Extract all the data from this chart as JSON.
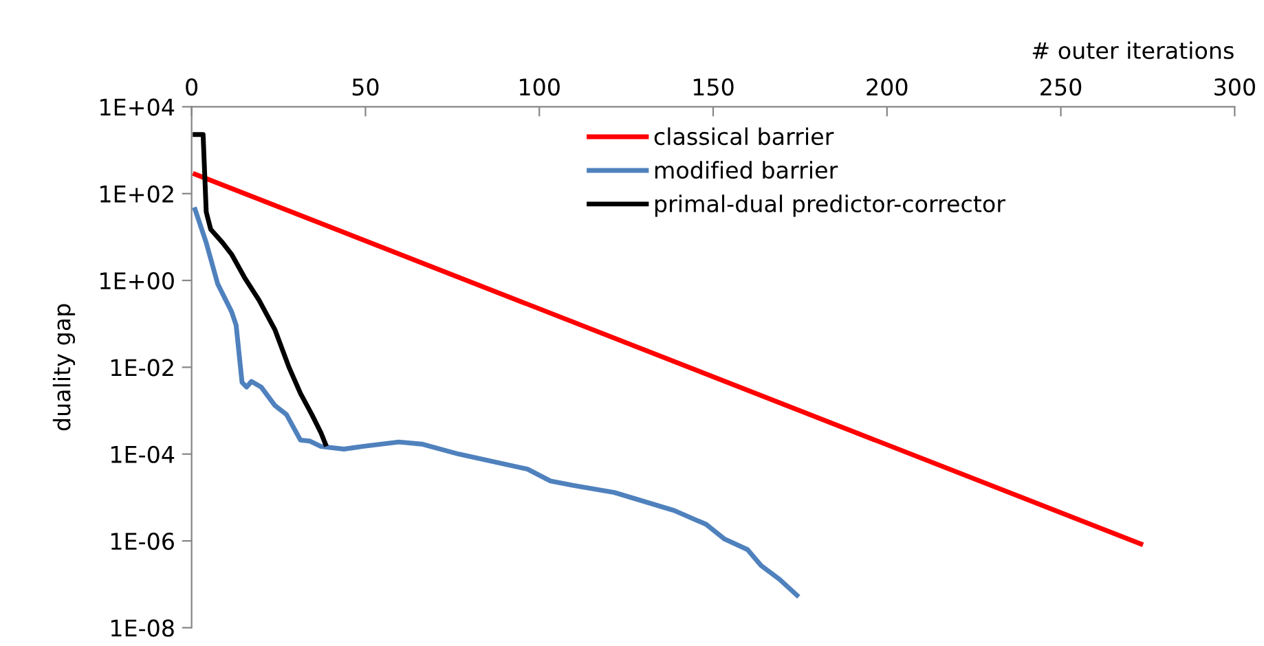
{
  "chart_data": {
    "type": "line",
    "xlabel": "# outer iterations",
    "ylabel": "duality gap",
    "xlim": [
      0,
      300
    ],
    "xticks": [
      0,
      50,
      100,
      150,
      200,
      250,
      300
    ],
    "ylim": [
      1e-08,
      10000
    ],
    "log": "y",
    "yticks": [
      {
        "value": 1e-08,
        "label": "1E-08"
      },
      {
        "value": 1e-06,
        "label": "1E-06"
      },
      {
        "value": 0.0001,
        "label": "1E-04"
      },
      {
        "value": 0.01,
        "label": "1E-02"
      },
      {
        "value": 1,
        "label": "1E+00"
      },
      {
        "value": 100,
        "label": "1E+02"
      },
      {
        "value": 10000,
        "label": "1E+04"
      }
    ],
    "grid": false,
    "legend": "top right",
    "marker": "none",
    "line_style": "solid",
    "series": [
      {
        "name": "classical barrier",
        "color": "#ff0000",
        "x": [
          1,
          273
        ],
        "values": [
          280,
          8.5e-07
        ]
      },
      {
        "name": "modified barrier",
        "color": "#4f81bd",
        "x": [
          1,
          4.2,
          7.5,
          11.5,
          12.8,
          14.5,
          15.8,
          17.2,
          20,
          24,
          27.3,
          31.3,
          33.9,
          37.2,
          43.8,
          49.1,
          59.6,
          66.2,
          76.8,
          96.6,
          103.2,
          109.8,
          121.6,
          138.8,
          148,
          153.3,
          159.9,
          163.8,
          169.1,
          174.1
        ],
        "values": [
          43,
          7.4,
          0.83,
          0.19,
          0.093,
          0.0045,
          0.0035,
          0.0047,
          0.0035,
          0.0013,
          0.00081,
          0.00021,
          0.0002,
          0.00015,
          0.00013,
          0.00015,
          0.00019,
          0.00017,
          0.0001,
          4.5e-05,
          2.4e-05,
          1.9e-05,
          1.3e-05,
          5e-06,
          2.4e-06,
          1.1e-06,
          6.3e-07,
          2.7e-07,
          1.3e-07,
          5.6e-08
        ]
      },
      {
        "name": "primal-dual predictor-corrector",
        "color": "#000000",
        "x": [
          1,
          3.3,
          4.2,
          5.5,
          8.9,
          11.5,
          15.4,
          19.4,
          24,
          28,
          31.3,
          34.6,
          37.2,
          38.5
        ],
        "values": [
          2300,
          2300,
          38,
          15,
          7.4,
          4,
          1.1,
          0.35,
          0.072,
          0.01,
          0.0025,
          0.00081,
          0.00031,
          0.00017
        ]
      }
    ]
  }
}
